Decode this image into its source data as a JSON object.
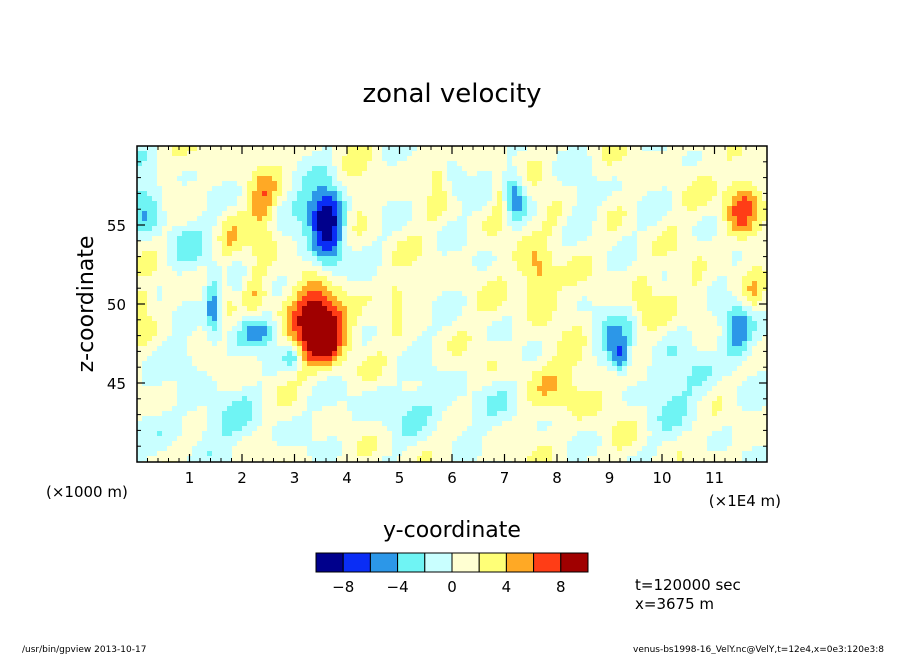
{
  "chart_data": {
    "type": "contour",
    "title": "zonal velocity",
    "xlabel": "y-coordinate",
    "ylabel": "z-coordinate",
    "x_unit_left": "(×1000 m)",
    "x_unit_right": "(×1E4 m)",
    "xlim": [
      0,
      12
    ],
    "ylim": [
      40,
      60
    ],
    "x_ticks": [
      1,
      2,
      3,
      4,
      5,
      6,
      7,
      8,
      9,
      10,
      11
    ],
    "y_ticks": [
      45,
      50,
      55
    ],
    "x_tick_labels": [
      "1",
      "2",
      "3",
      "4",
      "5",
      "6",
      "7",
      "8",
      "9",
      "10",
      "11"
    ],
    "y_tick_labels": [
      "45",
      "50",
      "55"
    ],
    "colorbar": {
      "levels": [
        -10,
        -8,
        -6,
        -4,
        -2,
        0,
        2,
        4,
        6,
        8,
        10
      ],
      "colors": [
        "#00008c",
        "#0a2df5",
        "#2c97e8",
        "#6ff4f4",
        "#c9ffff",
        "#ffffd2",
        "#ffff77",
        "#ffa925",
        "#ff3d16",
        "#a00000"
      ],
      "tick_values": [
        -8,
        -4,
        0,
        4,
        8
      ],
      "tick_labels": [
        "−8",
        "−4",
        "0",
        "4",
        "8"
      ]
    },
    "features": [
      {
        "x": 3.55,
        "z": 48.4,
        "amp": 10.0,
        "sx": 0.32,
        "sz": 1.6
      },
      {
        "x": 3.2,
        "z": 49.2,
        "amp": 3.5,
        "sx": 0.5,
        "sz": 1.4
      },
      {
        "x": 3.65,
        "z": 54.6,
        "amp": -8.6,
        "sx": 0.22,
        "sz": 2.0
      },
      {
        "x": 3.45,
        "z": 56.0,
        "amp": -5.0,
        "sx": 0.35,
        "sz": 1.0
      },
      {
        "x": 2.4,
        "z": 48.3,
        "amp": -6.0,
        "sx": 0.3,
        "sz": 0.8
      },
      {
        "x": 1.45,
        "z": 49.7,
        "amp": -6.2,
        "sx": 0.1,
        "sz": 1.4
      },
      {
        "x": 1.8,
        "z": 53.8,
        "amp": 2.2,
        "sx": 0.15,
        "sz": 1.5
      },
      {
        "x": 2.4,
        "z": 56.0,
        "amp": 3.8,
        "sx": 0.18,
        "sz": 1.8
      },
      {
        "x": 0.15,
        "z": 56.5,
        "amp": -4.5,
        "sx": 0.22,
        "sz": 1.4
      },
      {
        "x": 0.1,
        "z": 50.2,
        "amp": 3.0,
        "sx": 0.12,
        "sz": 0.6
      },
      {
        "x": 2.3,
        "z": 50.5,
        "amp": 3.2,
        "sx": 0.15,
        "sz": 1.0
      },
      {
        "x": 1.9,
        "z": 51.5,
        "amp": -3.0,
        "sx": 0.12,
        "sz": 1.2
      },
      {
        "x": 2.95,
        "z": 46.6,
        "amp": -5.0,
        "sx": 0.12,
        "sz": 0.5
      },
      {
        "x": 4.15,
        "z": 56.5,
        "amp": 2.0,
        "sx": 0.2,
        "sz": 1.0
      },
      {
        "x": 4.95,
        "z": 50.5,
        "amp": 2.5,
        "sx": 0.1,
        "sz": 0.9
      },
      {
        "x": 5.2,
        "z": 49.0,
        "amp": -2.5,
        "sx": 0.15,
        "sz": 0.7
      },
      {
        "x": 7.2,
        "z": 56.8,
        "amp": -7.0,
        "sx": 0.15,
        "sz": 1.1
      },
      {
        "x": 6.9,
        "z": 57.0,
        "amp": 3.0,
        "sx": 0.1,
        "sz": 0.8
      },
      {
        "x": 7.65,
        "z": 51.6,
        "amp": 5.5,
        "sx": 0.22,
        "sz": 1.3
      },
      {
        "x": 7.9,
        "z": 55.5,
        "amp": 2.5,
        "sx": 0.2,
        "sz": 1.0
      },
      {
        "x": 8.55,
        "z": 56.3,
        "amp": -2.6,
        "sx": 0.25,
        "sz": 1.4
      },
      {
        "x": 9.2,
        "z": 46.6,
        "amp": -7.0,
        "sx": 0.15,
        "sz": 0.7
      },
      {
        "x": 9.05,
        "z": 48.0,
        "amp": -3.5,
        "sx": 0.3,
        "sz": 1.0
      },
      {
        "x": 9.65,
        "z": 50.5,
        "amp": 2.6,
        "sx": 0.15,
        "sz": 1.5
      },
      {
        "x": 11.5,
        "z": 56.3,
        "amp": 6.2,
        "sx": 0.22,
        "sz": 1.5
      },
      {
        "x": 11.45,
        "z": 48.2,
        "amp": -6.5,
        "sx": 0.22,
        "sz": 1.4
      },
      {
        "x": 11.75,
        "z": 50.5,
        "amp": 2.2,
        "sx": 0.12,
        "sz": 0.8
      },
      {
        "x": 10.7,
        "z": 50.0,
        "amp": 3.0,
        "sx": 0.15,
        "sz": 1.1
      },
      {
        "x": 6.1,
        "z": 57.5,
        "amp": -2.5,
        "sx": 0.15,
        "sz": 0.8
      },
      {
        "x": 5.7,
        "z": 58.2,
        "amp": 2.5,
        "sx": 0.1,
        "sz": 0.5
      },
      {
        "x": 0.9,
        "z": 54.0,
        "amp": -2.5,
        "sx": 0.3,
        "sz": 1.4
      },
      {
        "x": 1.0,
        "z": 46.5,
        "amp": -2.5,
        "sx": 0.3,
        "sz": 0.7
      },
      {
        "x": 8.35,
        "z": 45.0,
        "amp": 2.5,
        "sx": 0.6,
        "sz": 1.5
      },
      {
        "x": 10.3,
        "z": 44.8,
        "amp": -2.5,
        "sx": 0.6,
        "sz": 2.0
      },
      {
        "x": 5.5,
        "z": 43.5,
        "amp": -2.4,
        "sx": 1.2,
        "sz": 1.2
      },
      {
        "x": 1.5,
        "z": 42.5,
        "amp": -2.4,
        "sx": 0.8,
        "sz": 1.5
      }
    ],
    "field_background": 0.8
  },
  "annotations": {
    "time": "t=120000 sec",
    "position": "x=3675 m",
    "footer_left": "/usr/bin/gpview  2013-10-17",
    "footer_right": "venus-bs1998-16_VelY.nc@VelY,t=12e4,x=0e3:120e3:8"
  }
}
